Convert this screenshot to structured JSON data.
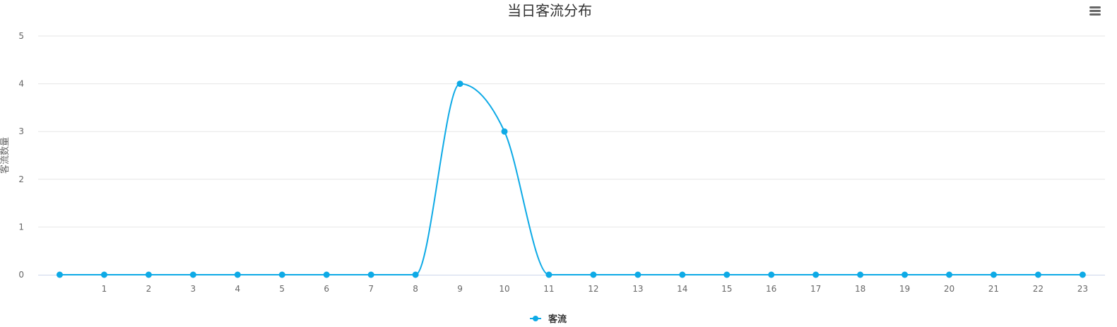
{
  "chart_data": {
    "type": "line",
    "title": "当日客流分布",
    "subtitle": "",
    "xlabel": "",
    "ylabel": "客流数量",
    "categories": [
      "",
      "1",
      "2",
      "3",
      "4",
      "5",
      "6",
      "7",
      "8",
      "9",
      "10",
      "11",
      "12",
      "13",
      "14",
      "15",
      "16",
      "17",
      "18",
      "19",
      "20",
      "21",
      "22",
      "23"
    ],
    "series": [
      {
        "name": "客流",
        "values": [
          0,
          0,
          0,
          0,
          0,
          0,
          0,
          0,
          0,
          4,
          3,
          0,
          0,
          0,
          0,
          0,
          0,
          0,
          0,
          0,
          0,
          0,
          0,
          0
        ],
        "color": "#0eaae6"
      }
    ],
    "ylim": [
      0,
      5
    ],
    "yticks": [
      "0",
      "1",
      "2",
      "3",
      "4",
      "5"
    ],
    "grid": true,
    "legend_position": "bottom-center",
    "smooth": true
  },
  "toolbar": {
    "menu_icon": "hamburger-menu-icon"
  },
  "colors": {
    "series": "#0eaae6",
    "grid": "#e6e6e6",
    "axis": "#ccd6eb",
    "menu": "#666666"
  }
}
